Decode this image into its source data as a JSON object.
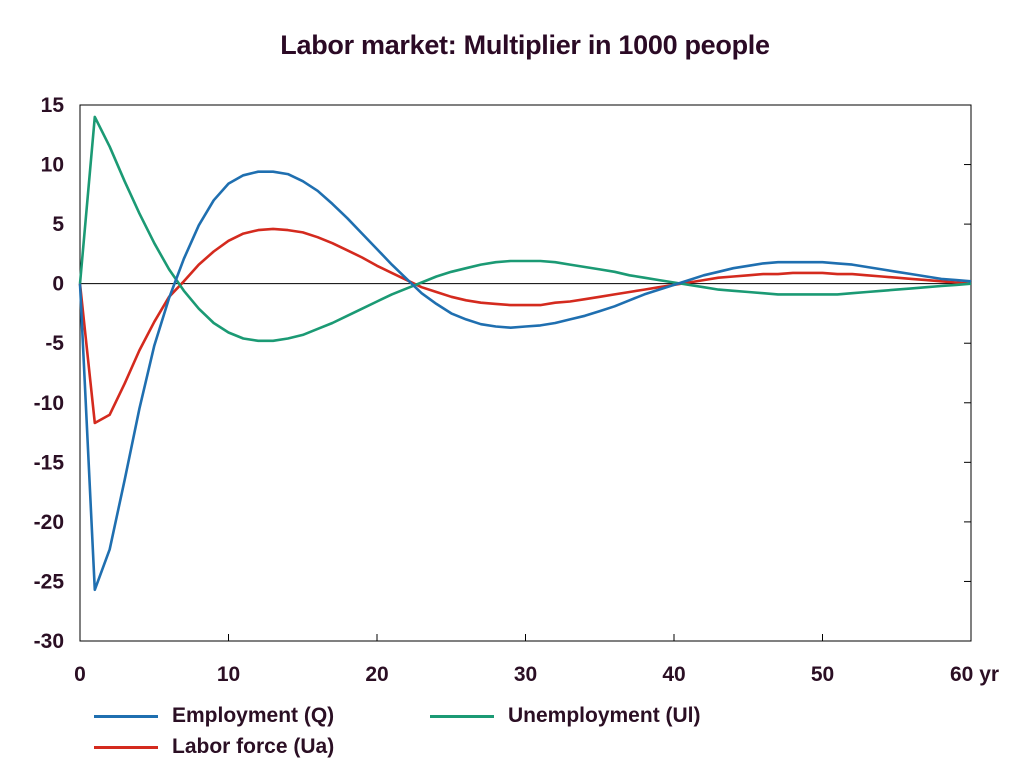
{
  "chart_data": {
    "type": "line",
    "title": "Labor market: Multiplier in 1000 people",
    "xlabel": "",
    "ylabel": "",
    "x_unit": "yr",
    "xlim": [
      0,
      60
    ],
    "ylim": [
      -30,
      15
    ],
    "x_ticks": [
      0,
      10,
      20,
      30,
      40,
      50,
      60
    ],
    "x_tick_labels": [
      "0",
      "10",
      "20",
      "30",
      "40",
      "50",
      "60 yr"
    ],
    "y_ticks": [
      15,
      10,
      5,
      0,
      -5,
      -10,
      -15,
      -20,
      -25,
      -30
    ],
    "y_tick_labels": [
      "15",
      "10",
      "5",
      "0",
      "-5",
      "-10",
      "-15",
      "-20",
      "-25",
      "-30"
    ],
    "grid": false,
    "legend_position": "bottom",
    "series": [
      {
        "name": "Employment (Q)",
        "color": "#1f6fb0",
        "x": [
          0,
          1,
          2,
          3,
          4,
          5,
          6,
          7,
          8,
          9,
          10,
          11,
          12,
          13,
          14,
          15,
          16,
          17,
          18,
          19,
          20,
          21,
          22,
          23,
          24,
          25,
          26,
          27,
          28,
          29,
          30,
          31,
          32,
          33,
          34,
          35,
          36,
          37,
          38,
          39,
          40,
          41,
          42,
          43,
          44,
          45,
          46,
          47,
          48,
          49,
          50,
          51,
          52,
          53,
          54,
          55,
          56,
          57,
          58,
          59,
          60
        ],
        "y": [
          0,
          -25.7,
          -22.3,
          -16.5,
          -10.5,
          -5.2,
          -1.2,
          2.1,
          4.9,
          7.0,
          8.4,
          9.1,
          9.4,
          9.4,
          9.2,
          8.6,
          7.8,
          6.7,
          5.5,
          4.2,
          2.9,
          1.6,
          0.4,
          -0.8,
          -1.7,
          -2.5,
          -3.0,
          -3.4,
          -3.6,
          -3.7,
          -3.6,
          -3.5,
          -3.3,
          -3.0,
          -2.7,
          -2.3,
          -1.9,
          -1.4,
          -0.9,
          -0.5,
          -0.1,
          0.3,
          0.7,
          1.0,
          1.3,
          1.5,
          1.7,
          1.8,
          1.8,
          1.8,
          1.8,
          1.7,
          1.6,
          1.4,
          1.2,
          1.0,
          0.8,
          0.6,
          0.4,
          0.3,
          0.2
        ]
      },
      {
        "name": "Unemployment (Ul)",
        "color": "#1b9a74",
        "x": [
          0,
          1,
          2,
          3,
          4,
          5,
          6,
          7,
          8,
          9,
          10,
          11,
          12,
          13,
          14,
          15,
          16,
          17,
          18,
          19,
          20,
          21,
          22,
          23,
          24,
          25,
          26,
          27,
          28,
          29,
          30,
          31,
          32,
          33,
          34,
          35,
          36,
          37,
          38,
          39,
          40,
          41,
          42,
          43,
          44,
          45,
          46,
          47,
          48,
          49,
          50,
          51,
          52,
          53,
          54,
          55,
          56,
          57,
          58,
          59,
          60
        ],
        "y": [
          0,
          14.0,
          11.5,
          8.6,
          5.9,
          3.4,
          1.2,
          -0.6,
          -2.1,
          -3.3,
          -4.1,
          -4.6,
          -4.8,
          -4.8,
          -4.6,
          -4.3,
          -3.8,
          -3.3,
          -2.7,
          -2.1,
          -1.5,
          -0.9,
          -0.4,
          0.1,
          0.6,
          1.0,
          1.3,
          1.6,
          1.8,
          1.9,
          1.9,
          1.9,
          1.8,
          1.6,
          1.4,
          1.2,
          1.0,
          0.7,
          0.5,
          0.3,
          0.1,
          -0.1,
          -0.3,
          -0.5,
          -0.6,
          -0.7,
          -0.8,
          -0.9,
          -0.9,
          -0.9,
          -0.9,
          -0.9,
          -0.8,
          -0.7,
          -0.6,
          -0.5,
          -0.4,
          -0.3,
          -0.2,
          -0.1,
          0.0
        ]
      },
      {
        "name": "Labor force (Ua)",
        "color": "#d42a1e",
        "x": [
          0,
          1,
          2,
          3,
          4,
          5,
          6,
          7,
          8,
          9,
          10,
          11,
          12,
          13,
          14,
          15,
          16,
          17,
          18,
          19,
          20,
          21,
          22,
          23,
          24,
          25,
          26,
          27,
          28,
          29,
          30,
          31,
          32,
          33,
          34,
          35,
          36,
          37,
          38,
          39,
          40,
          41,
          42,
          43,
          44,
          45,
          46,
          47,
          48,
          49,
          50,
          51,
          52,
          53,
          54,
          55,
          56,
          57,
          58,
          59,
          60
        ],
        "y": [
          0,
          -11.7,
          -11.0,
          -8.4,
          -5.6,
          -3.2,
          -1.1,
          0.2,
          1.6,
          2.7,
          3.6,
          4.2,
          4.5,
          4.6,
          4.5,
          4.3,
          3.9,
          3.4,
          2.8,
          2.2,
          1.5,
          0.9,
          0.3,
          -0.3,
          -0.7,
          -1.1,
          -1.4,
          -1.6,
          -1.7,
          -1.8,
          -1.8,
          -1.8,
          -1.6,
          -1.5,
          -1.3,
          -1.1,
          -0.9,
          -0.7,
          -0.5,
          -0.3,
          -0.1,
          0.1,
          0.3,
          0.5,
          0.6,
          0.7,
          0.8,
          0.8,
          0.9,
          0.9,
          0.9,
          0.8,
          0.8,
          0.7,
          0.6,
          0.5,
          0.4,
          0.3,
          0.2,
          0.1,
          0.0
        ]
      }
    ]
  }
}
